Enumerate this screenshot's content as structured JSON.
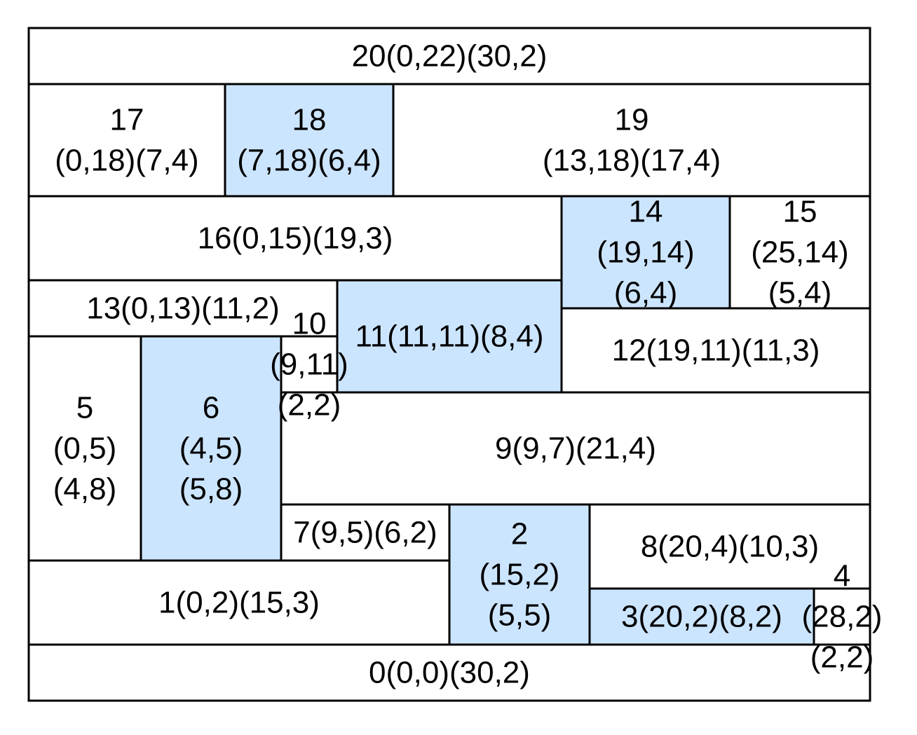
{
  "colors": {
    "fill": "#ffffff",
    "highlight": "#cce5ff",
    "stroke": "#000000"
  },
  "container": {
    "w": 30,
    "h": 24
  },
  "blocks": [
    {
      "id": 0,
      "x": 0,
      "y": 0,
      "w": 30,
      "h": 2,
      "highlight": false,
      "lines": [
        "0(0,0)(30,2)"
      ]
    },
    {
      "id": 1,
      "x": 0,
      "y": 2,
      "w": 15,
      "h": 3,
      "highlight": false,
      "lines": [
        "1(0,2)(15,3)"
      ]
    },
    {
      "id": 2,
      "x": 15,
      "y": 2,
      "w": 5,
      "h": 5,
      "highlight": true,
      "lines": [
        "2",
        "(15,2)",
        "(5,5)"
      ]
    },
    {
      "id": 3,
      "x": 20,
      "y": 2,
      "w": 8,
      "h": 2,
      "highlight": true,
      "lines": [
        "3(20,2)(8,2)"
      ]
    },
    {
      "id": 4,
      "x": 28,
      "y": 2,
      "w": 2,
      "h": 2,
      "highlight": false,
      "lines": [
        "4",
        "(28,2)",
        "(2,2)"
      ]
    },
    {
      "id": 5,
      "x": 0,
      "y": 5,
      "w": 4,
      "h": 8,
      "highlight": false,
      "lines": [
        "5",
        "(0,5)",
        "(4,8)"
      ]
    },
    {
      "id": 6,
      "x": 4,
      "y": 5,
      "w": 5,
      "h": 8,
      "highlight": true,
      "lines": [
        "6",
        "(4,5)",
        "(5,8)"
      ]
    },
    {
      "id": 7,
      "x": 9,
      "y": 5,
      "w": 6,
      "h": 2,
      "highlight": false,
      "lines": [
        "7(9,5)(6,2)"
      ]
    },
    {
      "id": 8,
      "x": 20,
      "y": 4,
      "w": 10,
      "h": 3,
      "highlight": false,
      "lines": [
        "8(20,4)(10,3)"
      ]
    },
    {
      "id": 9,
      "x": 9,
      "y": 7,
      "w": 21,
      "h": 4,
      "highlight": false,
      "lines": [
        "9(9,7)(21,4)"
      ]
    },
    {
      "id": 10,
      "x": 9,
      "y": 11,
      "w": 2,
      "h": 2,
      "highlight": false,
      "lines": [
        "10",
        "(9,11)",
        "(2,2)"
      ]
    },
    {
      "id": 11,
      "x": 11,
      "y": 11,
      "w": 8,
      "h": 4,
      "highlight": true,
      "lines": [
        "11(11,11)(8,4)"
      ]
    },
    {
      "id": 12,
      "x": 19,
      "y": 11,
      "w": 11,
      "h": 3,
      "highlight": false,
      "lines": [
        "12(19,11)(11,3)"
      ]
    },
    {
      "id": 13,
      "x": 0,
      "y": 13,
      "w": 11,
      "h": 2,
      "highlight": false,
      "lines": [
        "13(0,13)(11,2)"
      ]
    },
    {
      "id": 14,
      "x": 19,
      "y": 14,
      "w": 6,
      "h": 4,
      "highlight": true,
      "lines": [
        "14",
        "(19,14)",
        "(6,4)"
      ]
    },
    {
      "id": 15,
      "x": 25,
      "y": 14,
      "w": 5,
      "h": 4,
      "highlight": false,
      "lines": [
        "15",
        "(25,14)",
        "(5,4)"
      ]
    },
    {
      "id": 16,
      "x": 0,
      "y": 15,
      "w": 19,
      "h": 3,
      "highlight": false,
      "lines": [
        "16(0,15)(19,3)"
      ]
    },
    {
      "id": 17,
      "x": 0,
      "y": 18,
      "w": 7,
      "h": 4,
      "highlight": false,
      "lines": [
        "17",
        "(0,18)(7,4)"
      ]
    },
    {
      "id": 18,
      "x": 7,
      "y": 18,
      "w": 6,
      "h": 4,
      "highlight": true,
      "lines": [
        "18",
        "(7,18)(6,4)"
      ]
    },
    {
      "id": 19,
      "x": 13,
      "y": 18,
      "w": 17,
      "h": 4,
      "highlight": false,
      "lines": [
        "19",
        "(13,18)(17,4)"
      ]
    },
    {
      "id": 20,
      "x": 0,
      "y": 22,
      "w": 30,
      "h": 2,
      "highlight": false,
      "lines": [
        "20(0,22)(30,2)"
      ]
    }
  ]
}
